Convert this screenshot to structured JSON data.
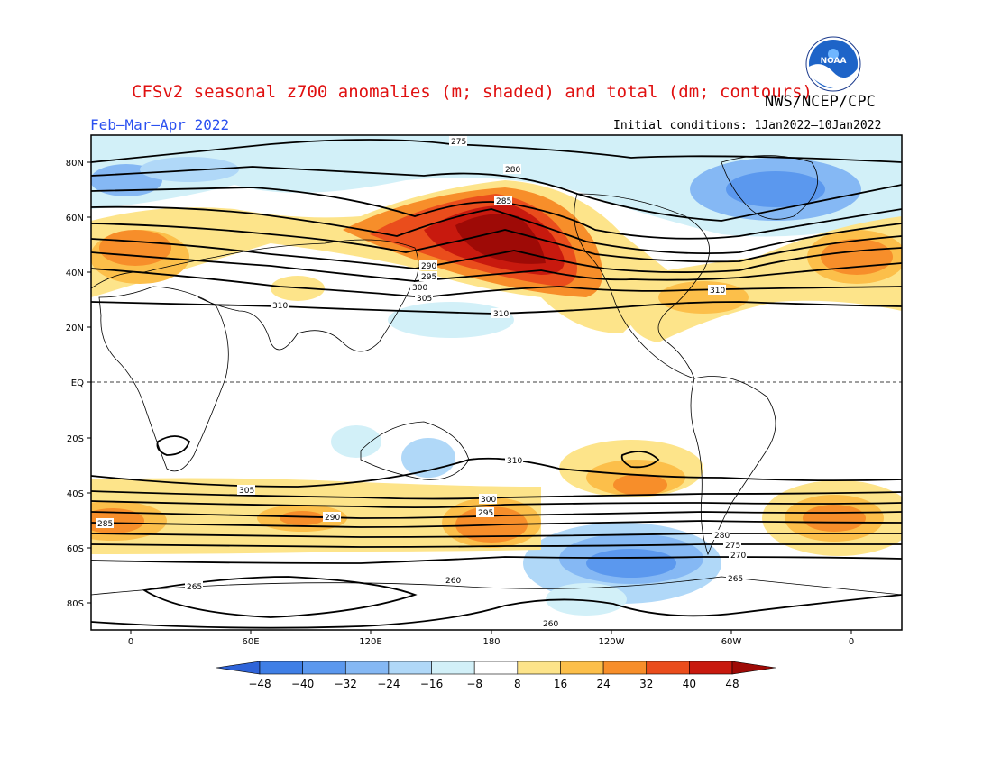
{
  "title": "CFSv2 seasonal z700 anomalies (m; shaded) and total (dm; contours)",
  "agency": "NWS/NCEP/CPC",
  "period": "Feb–Mar–Apr 2022",
  "initial_conditions": "Initial conditions: 1Jan2022–10Jan2022",
  "logo": {
    "text": "NOAA",
    "icon": "noaa-logo"
  },
  "map": {
    "lat_labels": [
      "80N",
      "60N",
      "40N",
      "20N",
      "EQ",
      "20S",
      "40S",
      "60S",
      "80S"
    ],
    "lon_labels": [
      "0",
      "60E",
      "120E",
      "180",
      "120W",
      "60W",
      "0"
    ],
    "contour_labels": [
      "275",
      "280",
      "285",
      "290",
      "295",
      "300",
      "305",
      "310",
      "310",
      "310",
      "310",
      "305",
      "300",
      "295",
      "290",
      "285",
      "280",
      "275",
      "270",
      "265",
      "260",
      "260",
      "265"
    ]
  },
  "colorbar": {
    "ticks": [
      "−48",
      "−40",
      "−32",
      "−24",
      "−16",
      "−8",
      "8",
      "16",
      "24",
      "32",
      "40",
      "48"
    ],
    "colors": [
      "#2e63d8",
      "#3f7fe6",
      "#5b98ee",
      "#85b8f4",
      "#b0d8f8",
      "#d2f0f8",
      "#ffffff",
      "#fde48a",
      "#fcbf4a",
      "#f78e2a",
      "#ea4d1c",
      "#c8190e",
      "#9e0a06"
    ]
  }
}
